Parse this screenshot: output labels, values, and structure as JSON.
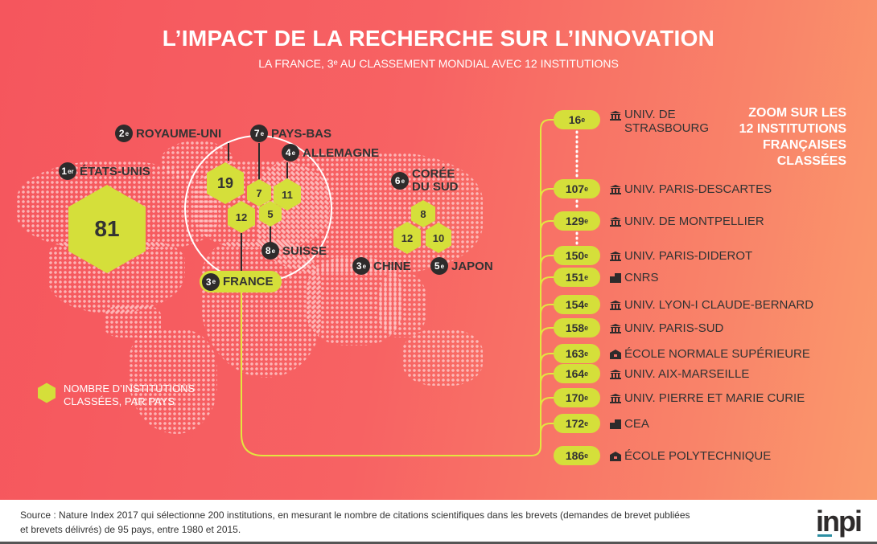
{
  "header": {
    "title": "L’IMPACT DE LA RECHERCHE SUR L’INNOVATION",
    "subtitle": "LA FRANCE, 3ᵉ AU CLASSEMENT MONDIAL AVEC 12 INSTITUTIONS"
  },
  "countries": [
    {
      "rank": "1",
      "suffix": "er",
      "name": "ÉTATS-UNIS",
      "count": "81"
    },
    {
      "rank": "2",
      "suffix": "e",
      "name": "ROYAUME-UNI",
      "count": "19"
    },
    {
      "rank": "7",
      "suffix": "e",
      "name": "PAYS-BAS",
      "count": "7"
    },
    {
      "rank": "4",
      "suffix": "e",
      "name": "ALLEMAGNE",
      "count": "11"
    },
    {
      "rank": "3",
      "suffix": "e",
      "name": "FRANCE",
      "count": "12"
    },
    {
      "rank": "8",
      "suffix": "e",
      "name": "SUISSE",
      "count": "5"
    },
    {
      "rank": "6",
      "suffix": "e",
      "name": "CORÉE",
      "name2": "DU SUD",
      "count": "8"
    },
    {
      "rank": "3",
      "suffix": "e",
      "name": "CHINE",
      "count": "12"
    },
    {
      "rank": "5",
      "suffix": "e",
      "name": "JAPON",
      "count": "10"
    }
  ],
  "legend": {
    "line1": "NOMBRE D’INSTITUTIONS",
    "line2": "CLASSÉES, PAR PAYS"
  },
  "zoom_title": [
    "ZOOM SUR LES",
    "12 INSTITUTIONS",
    "FRANÇAISES",
    "CLASSÉES"
  ],
  "institutions": [
    {
      "rank": "16",
      "suffix": "e",
      "icon": "university",
      "name": "UNIV. DE",
      "name2": "STRASBOURG"
    },
    {
      "rank": "107",
      "suffix": "e",
      "icon": "university",
      "name": "UNIV. PARIS-DESCARTES"
    },
    {
      "rank": "129",
      "suffix": "e",
      "icon": "university",
      "name": "UNIV. DE MONTPELLIER"
    },
    {
      "rank": "150",
      "suffix": "e",
      "icon": "university",
      "name": "UNIV. PARIS-DIDEROT"
    },
    {
      "rank": "151",
      "suffix": "e",
      "icon": "factory",
      "name": "CNRS"
    },
    {
      "rank": "154",
      "suffix": "e",
      "icon": "university",
      "name": "UNIV. LYON-I CLAUDE-BERNARD"
    },
    {
      "rank": "158",
      "suffix": "e",
      "icon": "university",
      "name": "UNIV. PARIS-SUD"
    },
    {
      "rank": "163",
      "suffix": "e",
      "icon": "school",
      "name": "ÉCOLE NORMALE SUPÉRIEURE"
    },
    {
      "rank": "164",
      "suffix": "e",
      "icon": "university",
      "name": "UNIV. AIX-MARSEILLE"
    },
    {
      "rank": "170",
      "suffix": "e",
      "icon": "university",
      "name": "UNIV. PIERRE ET MARIE CURIE"
    },
    {
      "rank": "172",
      "suffix": "e",
      "icon": "factory",
      "name": "CEA"
    },
    {
      "rank": "186",
      "suffix": "e",
      "icon": "school",
      "name": "ÉCOLE POLYTECHNIQUE"
    }
  ],
  "footer": {
    "source_line1": "Source : Nature Index 2017 qui sélectionne 200 institutions, en mesurant le nombre de citations scientifiques dans les brevets (demandes de brevet publiées",
    "source_line2": "et brevets délivrés) de 95 pays, entre 1980 et 2015.",
    "logo": "inpi"
  },
  "colors": {
    "accent": "#d5df3a",
    "dark": "#2e2b2b",
    "bg_left": "#f5565d",
    "bg_right": "#fa9a6c"
  }
}
